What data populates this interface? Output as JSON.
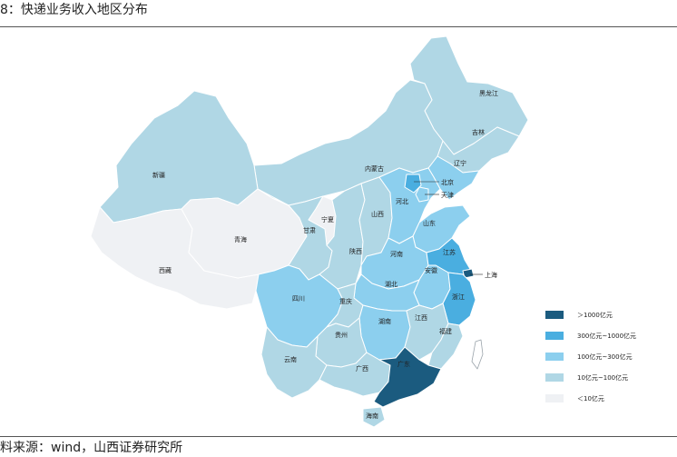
{
  "header": {
    "title": "8：快递业务收入地区分布"
  },
  "footer": {
    "source": "料来源：wind，山西证券研究所"
  },
  "colors": {
    "level1000": "#1b5b7f",
    "level300": "#4aaee0",
    "level100": "#8ccfee",
    "level10": "#b0d7e5",
    "below10": "#eff1f4",
    "border": "#ffffff"
  },
  "provinces": {
    "heilongjiang": "黑龙江",
    "jilin": "吉林",
    "liaoning": "辽宁",
    "neimenggu": "内蒙古",
    "xinjiang": "新疆",
    "xizang": "西藏",
    "qinghai": "青海",
    "gansu": "甘肃",
    "ningxia": "宁夏",
    "shaanxi": "陕西",
    "shanxi": "山西",
    "hebei": "河北",
    "beijing": "北京",
    "tianjin": "天津",
    "shandong": "山东",
    "henan": "河南",
    "jiangsu": "江苏",
    "anhui": "安徽",
    "shanghai": "上海",
    "hubei": "湖北",
    "zhejiang": "浙江",
    "sichuan": "四川",
    "chongqing": "重庆",
    "hunan": "湖南",
    "jiangxi": "江西",
    "fujian": "福建",
    "guizhou": "贵州",
    "yunnan": "云南",
    "guangxi": "广西",
    "guangdong": "广东",
    "hainan": "海南"
  },
  "legend": [
    {
      "label": "＞1000亿元",
      "color": "#1b5b7f"
    },
    {
      "label": "300亿元~1000亿元",
      "color": "#4aaee0"
    },
    {
      "label": "100亿元~300亿元",
      "color": "#8ccfee"
    },
    {
      "label": "10亿元~100亿元",
      "color": "#b0d7e5"
    },
    {
      "label": "＜10亿元",
      "color": "#eff1f4"
    }
  ]
}
